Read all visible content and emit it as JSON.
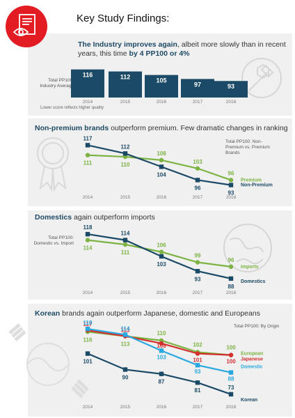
{
  "page": {
    "title": "Key Study Findings:"
  },
  "icons": {
    "badge": "eye-checklist-icon",
    "badge_color": "#e31b23"
  },
  "colors": {
    "navy": "#1b4a66",
    "green": "#7cb342",
    "lightblue": "#29a8e0",
    "red": "#d32f2f",
    "panel": "#f0f0f0"
  },
  "panels": [
    {
      "headline_pre": "The Industry ",
      "headline_bold": "improves again",
      "headline_mid": ", albeit more slowly than in recent years, this time ",
      "headline_bold2": "by 4 PP100 or 4%",
      "ylabel": "Total PP100: Industry Average",
      "note": "Lower score reflects higher quality",
      "deco": "wrench-icon"
    },
    {
      "headline_bold": "Non-premium brands",
      "headline_rest": " outperform premium. Few dramatic changes in ranking",
      "caption": "Total PP100: Non-Premium vs. Premium Brands",
      "deco": "award-ribbon-icon"
    },
    {
      "headline_bold": "Domestics",
      "headline_rest": " again outperform imports",
      "ylabel": "Total PP100: Domestic vs. Import",
      "deco": "globe-icon"
    },
    {
      "headline_bold": "Korean",
      "headline_rest": " brands again outperform Japanese, domestic and Europeans",
      "caption": "Total PP100: By Origin",
      "deco": "korea-flag-icon"
    }
  ],
  "chart_data": [
    {
      "type": "bar",
      "categories": [
        "2014",
        "2015",
        "2016",
        "2017",
        "2018"
      ],
      "values": [
        116,
        112,
        105,
        97,
        93
      ],
      "ylabel": "Total PP100: Industry Average"
    },
    {
      "type": "line",
      "x": [
        "2014",
        "2015",
        "2016",
        "2017",
        "2018"
      ],
      "series": [
        {
          "name": "Premium",
          "values": [
            111,
            110,
            108,
            103,
            96
          ],
          "color": "#7cb342"
        },
        {
          "name": "Non-Premium",
          "values": [
            117,
            112,
            104,
            96,
            93
          ],
          "color": "#1b4a66"
        }
      ]
    },
    {
      "type": "line",
      "x": [
        "2014",
        "2015",
        "2016",
        "2017",
        "2018"
      ],
      "series": [
        {
          "name": "Imports",
          "values": [
            114,
            111,
            106,
            99,
            96
          ],
          "color": "#7cb342"
        },
        {
          "name": "Domestics",
          "values": [
            118,
            114,
            103,
            93,
            88
          ],
          "color": "#1b4a66"
        }
      ]
    },
    {
      "type": "line",
      "x": [
        "2014",
        "2015",
        "2016",
        "2017",
        "2018"
      ],
      "series": [
        {
          "name": "European",
          "values": [
            116,
            113,
            110,
            102,
            100
          ],
          "color": "#7cb342"
        },
        {
          "name": "Japanese",
          "values": [
            117,
            113,
            108,
            101,
            100
          ],
          "color": "#d32f2f"
        },
        {
          "name": "Domestic",
          "values": [
            118,
            114,
            103,
            93,
            88
          ],
          "color": "#29a8e0"
        },
        {
          "name": "Korean",
          "values": [
            101,
            90,
            87,
            81,
            73
          ],
          "color": "#1b4a66"
        }
      ]
    }
  ]
}
